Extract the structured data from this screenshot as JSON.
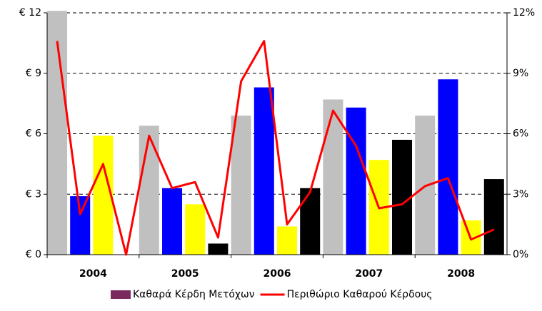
{
  "chart_data": {
    "type": "combo",
    "groups": [
      "2004",
      "2005",
      "2006",
      "2007",
      "2008"
    ],
    "bar_colors": [
      "#c0c0c0",
      "#0000ff",
      "#ffff00",
      "#000000"
    ],
    "series": [
      {
        "name": "Καθαρά Κέρδη Μετόχων",
        "color": "#7b2a5e",
        "kind": "bar",
        "values": [
          12.1,
          2.9,
          5.9,
          0,
          6.4,
          3.3,
          2.5,
          0.55,
          6.9,
          8.3,
          1.4,
          3.3,
          7.7,
          7.3,
          4.7,
          5.7,
          6.9,
          8.7,
          1.7,
          3.75
        ]
      },
      {
        "name": "Περιθώριο Καθαρού Κέρδους",
        "color": "#ff0000",
        "kind": "line",
        "axis": "y2",
        "values": [
          10.6,
          2.0,
          4.5,
          0,
          5.9,
          3.3,
          3.6,
          0.85,
          8.6,
          10.6,
          1.5,
          3.1,
          7.15,
          5.4,
          2.3,
          2.5,
          3.4,
          3.8,
          0.75,
          1.25
        ]
      }
    ],
    "ylim": [
      0,
      12
    ],
    "yticks": [
      {
        "value": 0,
        "label": "€ 0"
      },
      {
        "value": 3,
        "label": "€ 3"
      },
      {
        "value": 6,
        "label": "€ 6"
      },
      {
        "value": 9,
        "label": "€ 9"
      },
      {
        "value": 12,
        "label": "€ 12"
      }
    ],
    "y2lim": [
      0,
      12
    ],
    "y2ticks": [
      {
        "value": 0,
        "label": "0%"
      },
      {
        "value": 3,
        "label": "3%"
      },
      {
        "value": 6,
        "label": "6%"
      },
      {
        "value": 9,
        "label": "9%"
      },
      {
        "value": 12,
        "label": "12%"
      }
    ],
    "grid": true,
    "legend": "bottom"
  }
}
